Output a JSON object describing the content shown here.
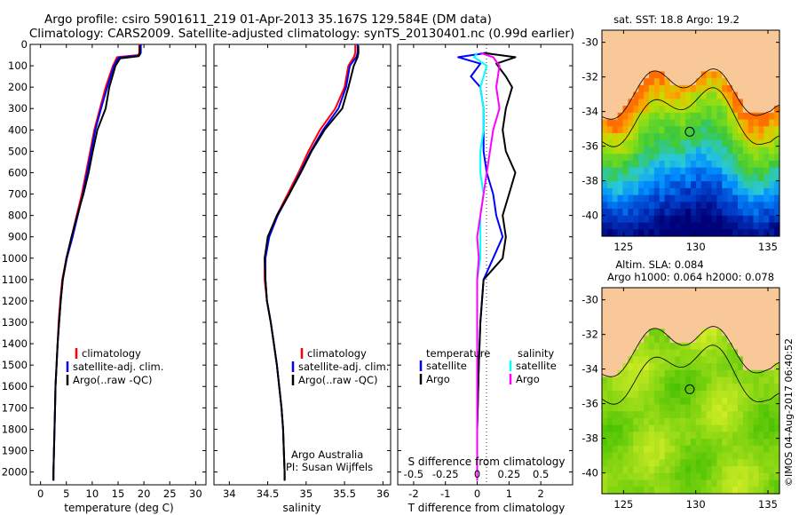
{
  "header": {
    "line1": "Argo profile: csiro 5901611_219 01-Apr-2013 35.167S 129.584E (DM data)",
    "line2": "Climatology: CARS2009. Satellite-adjusted climatology: synTS_20130401.nc (0.99d earlier)"
  },
  "colors": {
    "climatology": "#ff0000",
    "satellite": "#0000ff",
    "argo": "#000000",
    "sat_salinity": "#00ffff",
    "argo_salinity": "#ff00ff",
    "land": "#f8c898"
  },
  "chart_data": [
    {
      "type": "line",
      "id": "temperature",
      "xlabel": "temperature (deg C)",
      "xticks": [
        0,
        5,
        10,
        15,
        20,
        25,
        30
      ],
      "xlim": [
        -2,
        32
      ],
      "ylim": [
        0,
        2060
      ],
      "yticks": [
        0,
        100,
        200,
        300,
        400,
        500,
        600,
        700,
        800,
        900,
        1000,
        1100,
        1200,
        1300,
        1400,
        1500,
        1600,
        1700,
        1800,
        1900,
        2000
      ],
      "legend": [
        "climatology",
        "satellite-adj. clim.",
        "Argo(..raw -QC)"
      ],
      "series": [
        {
          "name": "climatology",
          "points": [
            [
              19.1,
              0
            ],
            [
              19.1,
              40
            ],
            [
              18.9,
              50
            ],
            [
              14.8,
              60
            ],
            [
              14.0,
              100
            ],
            [
              12.6,
              200
            ],
            [
              11.5,
              300
            ],
            [
              10.4,
              400
            ],
            [
              9.6,
              500
            ],
            [
              8.8,
              600
            ],
            [
              8.0,
              700
            ],
            [
              7.0,
              800
            ],
            [
              6.0,
              900
            ],
            [
              5.0,
              1000
            ],
            [
              4.2,
              1100
            ],
            [
              3.8,
              1200
            ],
            [
              3.5,
              1300
            ],
            [
              3.3,
              1400
            ],
            [
              3.1,
              1500
            ],
            [
              2.9,
              1600
            ],
            [
              2.8,
              1700
            ],
            [
              2.7,
              1800
            ],
            [
              2.6,
              1900
            ],
            [
              2.5,
              2000
            ],
            [
              2.5,
              2040
            ]
          ]
        },
        {
          "name": "satellite-adj. clim.",
          "points": [
            [
              19.4,
              0
            ],
            [
              19.4,
              40
            ],
            [
              19.1,
              52
            ],
            [
              15.1,
              62
            ],
            [
              14.2,
              100
            ],
            [
              12.9,
              200
            ],
            [
              11.7,
              300
            ],
            [
              10.6,
              400
            ],
            [
              9.8,
              500
            ],
            [
              9.0,
              600
            ],
            [
              8.2,
              700
            ],
            [
              7.2,
              800
            ],
            [
              6.2,
              900
            ],
            [
              5.1,
              1000
            ],
            [
              4.3,
              1100
            ],
            [
              3.9,
              1200
            ],
            [
              3.6,
              1300
            ],
            [
              3.3,
              1400
            ],
            [
              3.1,
              1500
            ],
            [
              2.9,
              1600
            ],
            [
              2.8,
              1700
            ],
            [
              2.7,
              1800
            ],
            [
              2.6,
              1900
            ],
            [
              2.5,
              2000
            ],
            [
              2.5,
              2040
            ]
          ]
        },
        {
          "name": "Argo(..raw -QC)",
          "points": [
            [
              19.2,
              5
            ],
            [
              19.2,
              40
            ],
            [
              19.0,
              55
            ],
            [
              15.4,
              65
            ],
            [
              14.5,
              100
            ],
            [
              13.3,
              200
            ],
            [
              12.6,
              300
            ],
            [
              11.0,
              400
            ],
            [
              10.1,
              500
            ],
            [
              9.3,
              600
            ],
            [
              8.3,
              700
            ],
            [
              7.1,
              800
            ],
            [
              6.0,
              900
            ],
            [
              5.0,
              1000
            ],
            [
              4.3,
              1100
            ],
            [
              3.9,
              1200
            ],
            [
              3.6,
              1300
            ],
            [
              3.3,
              1400
            ],
            [
              3.1,
              1500
            ],
            [
              2.9,
              1600
            ],
            [
              2.8,
              1700
            ],
            [
              2.7,
              1800
            ],
            [
              2.6,
              1900
            ],
            [
              2.5,
              2000
            ],
            [
              2.5,
              2040
            ]
          ]
        }
      ]
    },
    {
      "type": "line",
      "id": "salinity",
      "xlabel": "salinity",
      "xticks": [
        34,
        34.5,
        35,
        35.5,
        36
      ],
      "xlim": [
        33.8,
        36.1
      ],
      "ylim": [
        0,
        2060
      ],
      "legend": [
        "climatology",
        "satellite-adj. clim.",
        "Argo(..raw -QC)"
      ],
      "annotation": [
        "Argo Australia",
        "PI: Susan Wijffels"
      ],
      "series": [
        {
          "name": "climatology",
          "points": [
            [
              35.64,
              0
            ],
            [
              35.64,
              40
            ],
            [
              35.62,
              60
            ],
            [
              35.55,
              100
            ],
            [
              35.5,
              200
            ],
            [
              35.38,
              300
            ],
            [
              35.18,
              400
            ],
            [
              35.03,
              500
            ],
            [
              34.9,
              600
            ],
            [
              34.76,
              700
            ],
            [
              34.62,
              800
            ],
            [
              34.51,
              900
            ],
            [
              34.46,
              1000
            ],
            [
              34.46,
              1100
            ],
            [
              34.49,
              1200
            ],
            [
              34.54,
              1300
            ],
            [
              34.58,
              1400
            ],
            [
              34.62,
              1500
            ],
            [
              34.65,
              1600
            ],
            [
              34.68,
              1700
            ],
            [
              34.7,
              1800
            ],
            [
              34.71,
              1900
            ],
            [
              34.72,
              2000
            ],
            [
              34.72,
              2040
            ]
          ]
        },
        {
          "name": "satellite-adj. clim.",
          "points": [
            [
              35.67,
              0
            ],
            [
              35.67,
              40
            ],
            [
              35.65,
              60
            ],
            [
              35.57,
              100
            ],
            [
              35.52,
              200
            ],
            [
              35.42,
              300
            ],
            [
              35.22,
              400
            ],
            [
              35.06,
              500
            ],
            [
              34.92,
              600
            ],
            [
              34.78,
              700
            ],
            [
              34.63,
              800
            ],
            [
              34.52,
              900
            ],
            [
              34.47,
              1000
            ],
            [
              34.47,
              1100
            ],
            [
              34.49,
              1200
            ],
            [
              34.54,
              1300
            ],
            [
              34.58,
              1400
            ],
            [
              34.62,
              1500
            ],
            [
              34.65,
              1600
            ],
            [
              34.68,
              1700
            ],
            [
              34.7,
              1800
            ],
            [
              34.71,
              1900
            ],
            [
              34.72,
              2000
            ],
            [
              34.72,
              2040
            ]
          ]
        },
        {
          "name": "Argo(..raw -QC)",
          "points": [
            [
              35.68,
              5
            ],
            [
              35.68,
              40
            ],
            [
              35.67,
              60
            ],
            [
              35.62,
              100
            ],
            [
              35.55,
              200
            ],
            [
              35.47,
              300
            ],
            [
              35.24,
              400
            ],
            [
              35.07,
              500
            ],
            [
              34.93,
              600
            ],
            [
              34.78,
              700
            ],
            [
              34.62,
              800
            ],
            [
              34.5,
              900
            ],
            [
              34.46,
              1000
            ],
            [
              34.47,
              1100
            ],
            [
              34.49,
              1200
            ],
            [
              34.54,
              1300
            ],
            [
              34.58,
              1400
            ],
            [
              34.62,
              1500
            ],
            [
              34.65,
              1600
            ],
            [
              34.68,
              1700
            ],
            [
              34.7,
              1800
            ],
            [
              34.71,
              1900
            ],
            [
              34.72,
              2000
            ],
            [
              34.72,
              2040
            ]
          ]
        }
      ]
    },
    {
      "type": "line",
      "id": "difference",
      "xlabel": "T difference from climatology",
      "top_xlabel": "S difference from climatology",
      "xticks": [
        -2,
        -1,
        0,
        1,
        2
      ],
      "xlim": [
        -2.5,
        3.0
      ],
      "top_ticks": [
        "-0.5",
        "-0.25",
        "0",
        "0.25",
        "0.5"
      ],
      "top_tick_values": [
        -2,
        -1,
        0,
        1,
        2
      ],
      "ylim": [
        0,
        2060
      ],
      "legend_titles": [
        "temperature",
        "salinity"
      ],
      "legend_left": [
        "satellite",
        "Argo"
      ],
      "legend_right": [
        "satellite",
        "Argo"
      ],
      "series": [
        {
          "name": "temperature satellite",
          "points": [
            [
              0.3,
              40
            ],
            [
              -0.6,
              60
            ],
            [
              0.1,
              90
            ],
            [
              -0.2,
              150
            ],
            [
              0.1,
              200
            ],
            [
              0.2,
              300
            ],
            [
              0.2,
              400
            ],
            [
              0.2,
              500
            ],
            [
              0.3,
              600
            ],
            [
              0.5,
              700
            ],
            [
              0.6,
              800
            ],
            [
              0.8,
              900
            ],
            [
              0.5,
              1000
            ],
            [
              0.2,
              1100
            ],
            [
              0.1,
              1300
            ],
            [
              0.05,
              1500
            ],
            [
              0.0,
              1800
            ],
            [
              0.0,
              2040
            ]
          ]
        },
        {
          "name": "temperature Argo",
          "points": [
            [
              0.2,
              40
            ],
            [
              1.2,
              60
            ],
            [
              0.6,
              90
            ],
            [
              0.9,
              150
            ],
            [
              1.1,
              200
            ],
            [
              0.9,
              300
            ],
            [
              0.8,
              400
            ],
            [
              0.9,
              500
            ],
            [
              1.2,
              600
            ],
            [
              1.0,
              700
            ],
            [
              0.8,
              800
            ],
            [
              0.9,
              900
            ],
            [
              0.8,
              1000
            ],
            [
              0.2,
              1100
            ],
            [
              0.1,
              1300
            ],
            [
              0.05,
              1500
            ],
            [
              0.0,
              1800
            ],
            [
              0.0,
              2040
            ]
          ]
        },
        {
          "name": "salinity satellite",
          "points": [
            [
              0.0,
              40
            ],
            [
              -0.1,
              60
            ],
            [
              0.3,
              100
            ],
            [
              0.1,
              200
            ],
            [
              0.2,
              300
            ],
            [
              0.2,
              400
            ],
            [
              0.1,
              500
            ],
            [
              0.1,
              600
            ],
            [
              0.2,
              700
            ],
            [
              0.1,
              800
            ],
            [
              0.1,
              900
            ],
            [
              0.1,
              1000
            ],
            [
              0.0,
              1100
            ],
            [
              0.0,
              1500
            ],
            [
              0.0,
              1800
            ],
            [
              0.0,
              2040
            ]
          ]
        },
        {
          "name": "salinity Argo",
          "points": [
            [
              0.1,
              40
            ],
            [
              0.5,
              60
            ],
            [
              0.7,
              100
            ],
            [
              0.6,
              200
            ],
            [
              0.7,
              300
            ],
            [
              0.5,
              400
            ],
            [
              0.4,
              500
            ],
            [
              0.3,
              600
            ],
            [
              0.2,
              700
            ],
            [
              0.1,
              800
            ],
            [
              0.0,
              900
            ],
            [
              0.05,
              1000
            ],
            [
              0.0,
              1100
            ],
            [
              0.0,
              1500
            ],
            [
              0.0,
              1800
            ],
            [
              0.0,
              2040
            ]
          ]
        }
      ]
    },
    {
      "type": "heatmap",
      "id": "sst_map",
      "title": "sat. SST: 18.8  Argo: 19.2",
      "xticks": [
        "125",
        "130",
        "135"
      ],
      "yticks": [
        "-30",
        "-32",
        "-34",
        "-36",
        "-38",
        "-40"
      ],
      "lon_range": [
        123.5,
        135.8
      ],
      "lat_range": [
        -41.2,
        -29.3
      ],
      "argo_position": [
        129.584,
        -35.167
      ]
    },
    {
      "type": "heatmap",
      "id": "sla_map",
      "title_lines": [
        "Altim. SLA: 0.084",
        "Argo h1000: 0.064 h2000: 0.078"
      ],
      "xticks": [
        "125",
        "130",
        "135"
      ],
      "yticks": [
        "-30",
        "-32",
        "-34",
        "-36",
        "-38",
        "-40"
      ],
      "lon_range": [
        123.5,
        135.8
      ],
      "lat_range": [
        -41.2,
        -29.3
      ],
      "argo_position": [
        129.584,
        -35.167
      ]
    }
  ],
  "credit": "©IMOS 04-Aug-2017 06:40:52"
}
